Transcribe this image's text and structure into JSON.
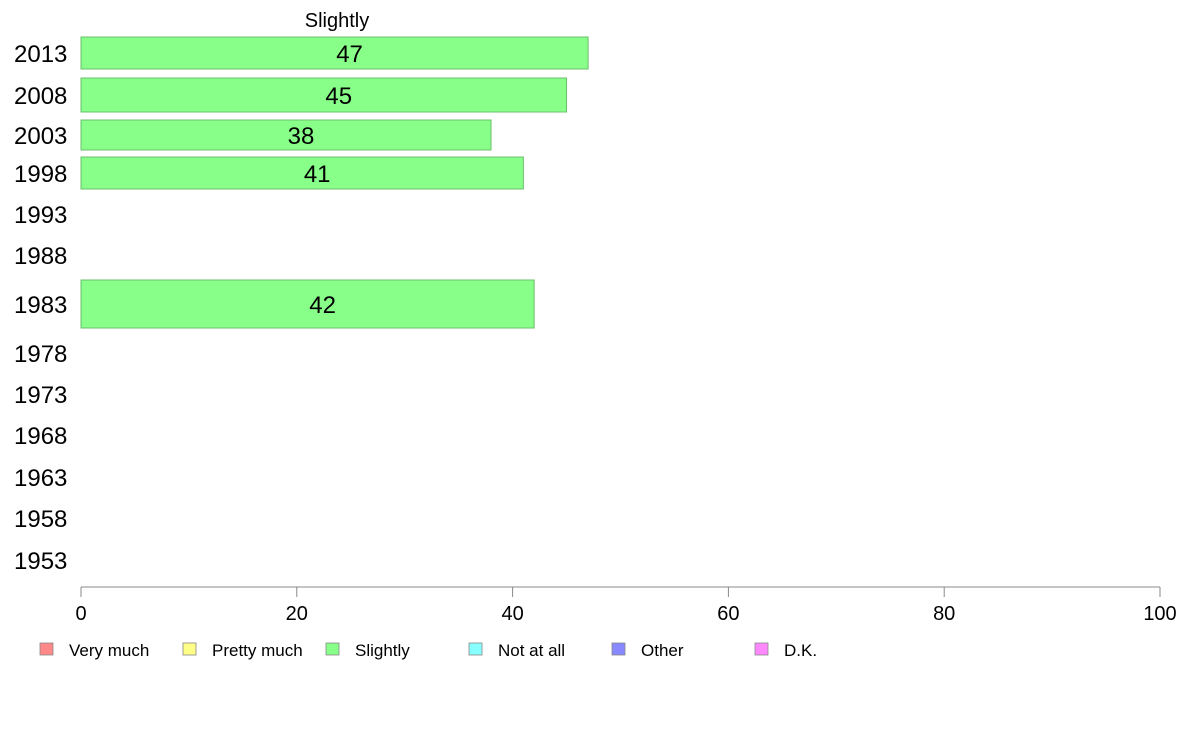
{
  "chart_data": {
    "type": "bar",
    "orientation": "horizontal",
    "title": "Slightly",
    "categories": [
      "2013",
      "2008",
      "2003",
      "1998",
      "1993",
      "1988",
      "1983",
      "1978",
      "1973",
      "1968",
      "1963",
      "1958",
      "1953"
    ],
    "series": [
      {
        "name": "Slightly",
        "color": "#88ff88",
        "values": [
          47,
          45,
          38,
          41,
          null,
          null,
          42,
          null,
          null,
          null,
          null,
          null,
          null
        ]
      }
    ],
    "xlim": [
      0,
      100
    ],
    "xticks": [
      "0",
      "20",
      "40",
      "60",
      "80",
      "100"
    ],
    "grid": false,
    "legend_position": "bottom",
    "legend": [
      {
        "label": "Very much",
        "color": "#ff8888"
      },
      {
        "label": "Pretty much",
        "color": "#ffff88"
      },
      {
        "label": "Slightly",
        "color": "#88ff88"
      },
      {
        "label": "Not at all",
        "color": "#88ffff"
      },
      {
        "label": "Other",
        "color": "#8888ff"
      },
      {
        "label": "D.K.",
        "color": "#ff88ff"
      }
    ]
  }
}
